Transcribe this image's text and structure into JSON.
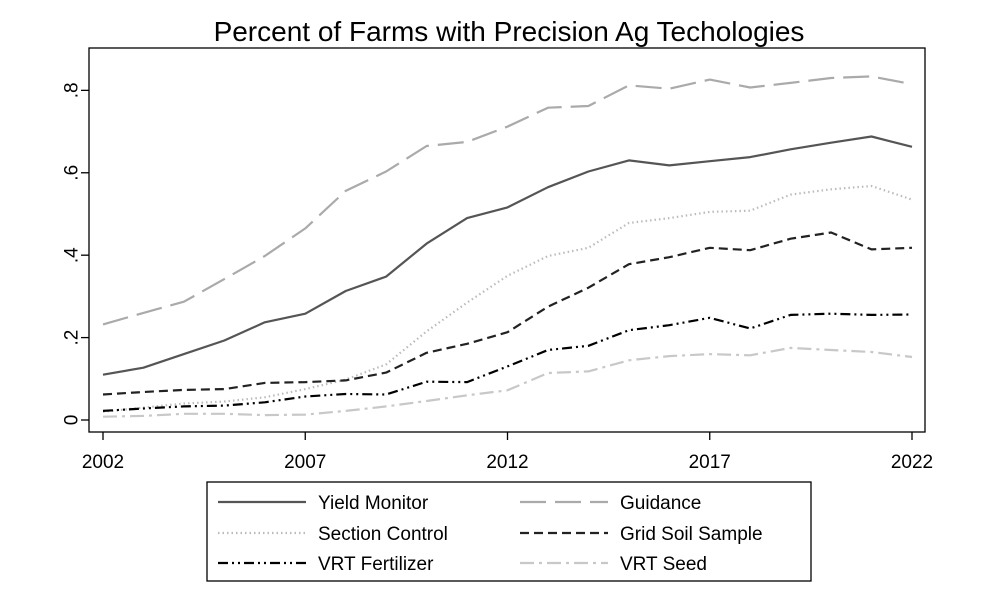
{
  "chart_data": {
    "type": "line",
    "title": "Percent of Farms with Precision Ag Techologies",
    "xlabel": "",
    "ylabel": "",
    "x": [
      2002,
      2003,
      2004,
      2005,
      2006,
      2007,
      2008,
      2009,
      2010,
      2011,
      2012,
      2013,
      2014,
      2015,
      2016,
      2017,
      2018,
      2019,
      2020,
      2021,
      2022
    ],
    "xlim": [
      2002,
      2022
    ],
    "ylim": [
      0,
      0.83
    ],
    "x_ticks": [
      2002,
      2007,
      2012,
      2017,
      2022
    ],
    "x_tick_labels": [
      "2002",
      "2007",
      "2012",
      "2017",
      "2022"
    ],
    "y_ticks": [
      0,
      0.2,
      0.4,
      0.6,
      0.8
    ],
    "y_tick_labels": [
      "0",
      ".2",
      ".4",
      ".6",
      ".8"
    ],
    "grid": false,
    "legend_position": "bottom",
    "series": [
      {
        "name": "Yield Monitor",
        "color": "#555555",
        "style": "solid",
        "values": [
          0.11,
          0.127,
          0.16,
          0.193,
          0.237,
          0.258,
          0.313,
          0.348,
          0.428,
          0.49,
          0.516,
          0.565,
          0.603,
          0.63,
          0.618,
          0.628,
          0.638,
          0.657,
          0.673,
          0.688,
          0.663
        ]
      },
      {
        "name": "Guidance",
        "color": "#aaaaaa",
        "style": "longdash",
        "values": [
          0.232,
          0.26,
          0.287,
          0.342,
          0.398,
          0.465,
          0.556,
          0.603,
          0.665,
          0.675,
          0.712,
          0.758,
          0.762,
          0.812,
          0.804,
          0.826,
          0.807,
          0.818,
          0.83,
          0.834,
          0.815
        ]
      },
      {
        "name": "Section Control",
        "color": "#bbbbbb",
        "style": "dot",
        "values": [
          0.02,
          0.03,
          0.04,
          0.045,
          0.055,
          0.075,
          0.098,
          0.135,
          0.215,
          0.285,
          0.35,
          0.398,
          0.418,
          0.478,
          0.49,
          0.505,
          0.508,
          0.547,
          0.56,
          0.568,
          0.535
        ]
      },
      {
        "name": "Grid Soil Sample",
        "color": "#222222",
        "style": "dash",
        "values": [
          0.062,
          0.068,
          0.073,
          0.075,
          0.09,
          0.092,
          0.096,
          0.115,
          0.163,
          0.185,
          0.213,
          0.275,
          0.321,
          0.378,
          0.395,
          0.418,
          0.412,
          0.44,
          0.455,
          0.414,
          0.418
        ]
      },
      {
        "name": "VRT Fertilizer",
        "color": "#000000",
        "style": "dashdotdot",
        "values": [
          0.022,
          0.028,
          0.033,
          0.035,
          0.043,
          0.057,
          0.063,
          0.062,
          0.093,
          0.092,
          0.13,
          0.17,
          0.18,
          0.218,
          0.23,
          0.248,
          0.222,
          0.255,
          0.258,
          0.255,
          0.256
        ]
      },
      {
        "name": "VRT Seed",
        "color": "#c8c8c8",
        "style": "dashdot",
        "values": [
          0.008,
          0.01,
          0.015,
          0.015,
          0.012,
          0.013,
          0.022,
          0.033,
          0.046,
          0.06,
          0.072,
          0.114,
          0.118,
          0.145,
          0.155,
          0.16,
          0.157,
          0.175,
          0.17,
          0.165,
          0.153
        ]
      }
    ]
  }
}
